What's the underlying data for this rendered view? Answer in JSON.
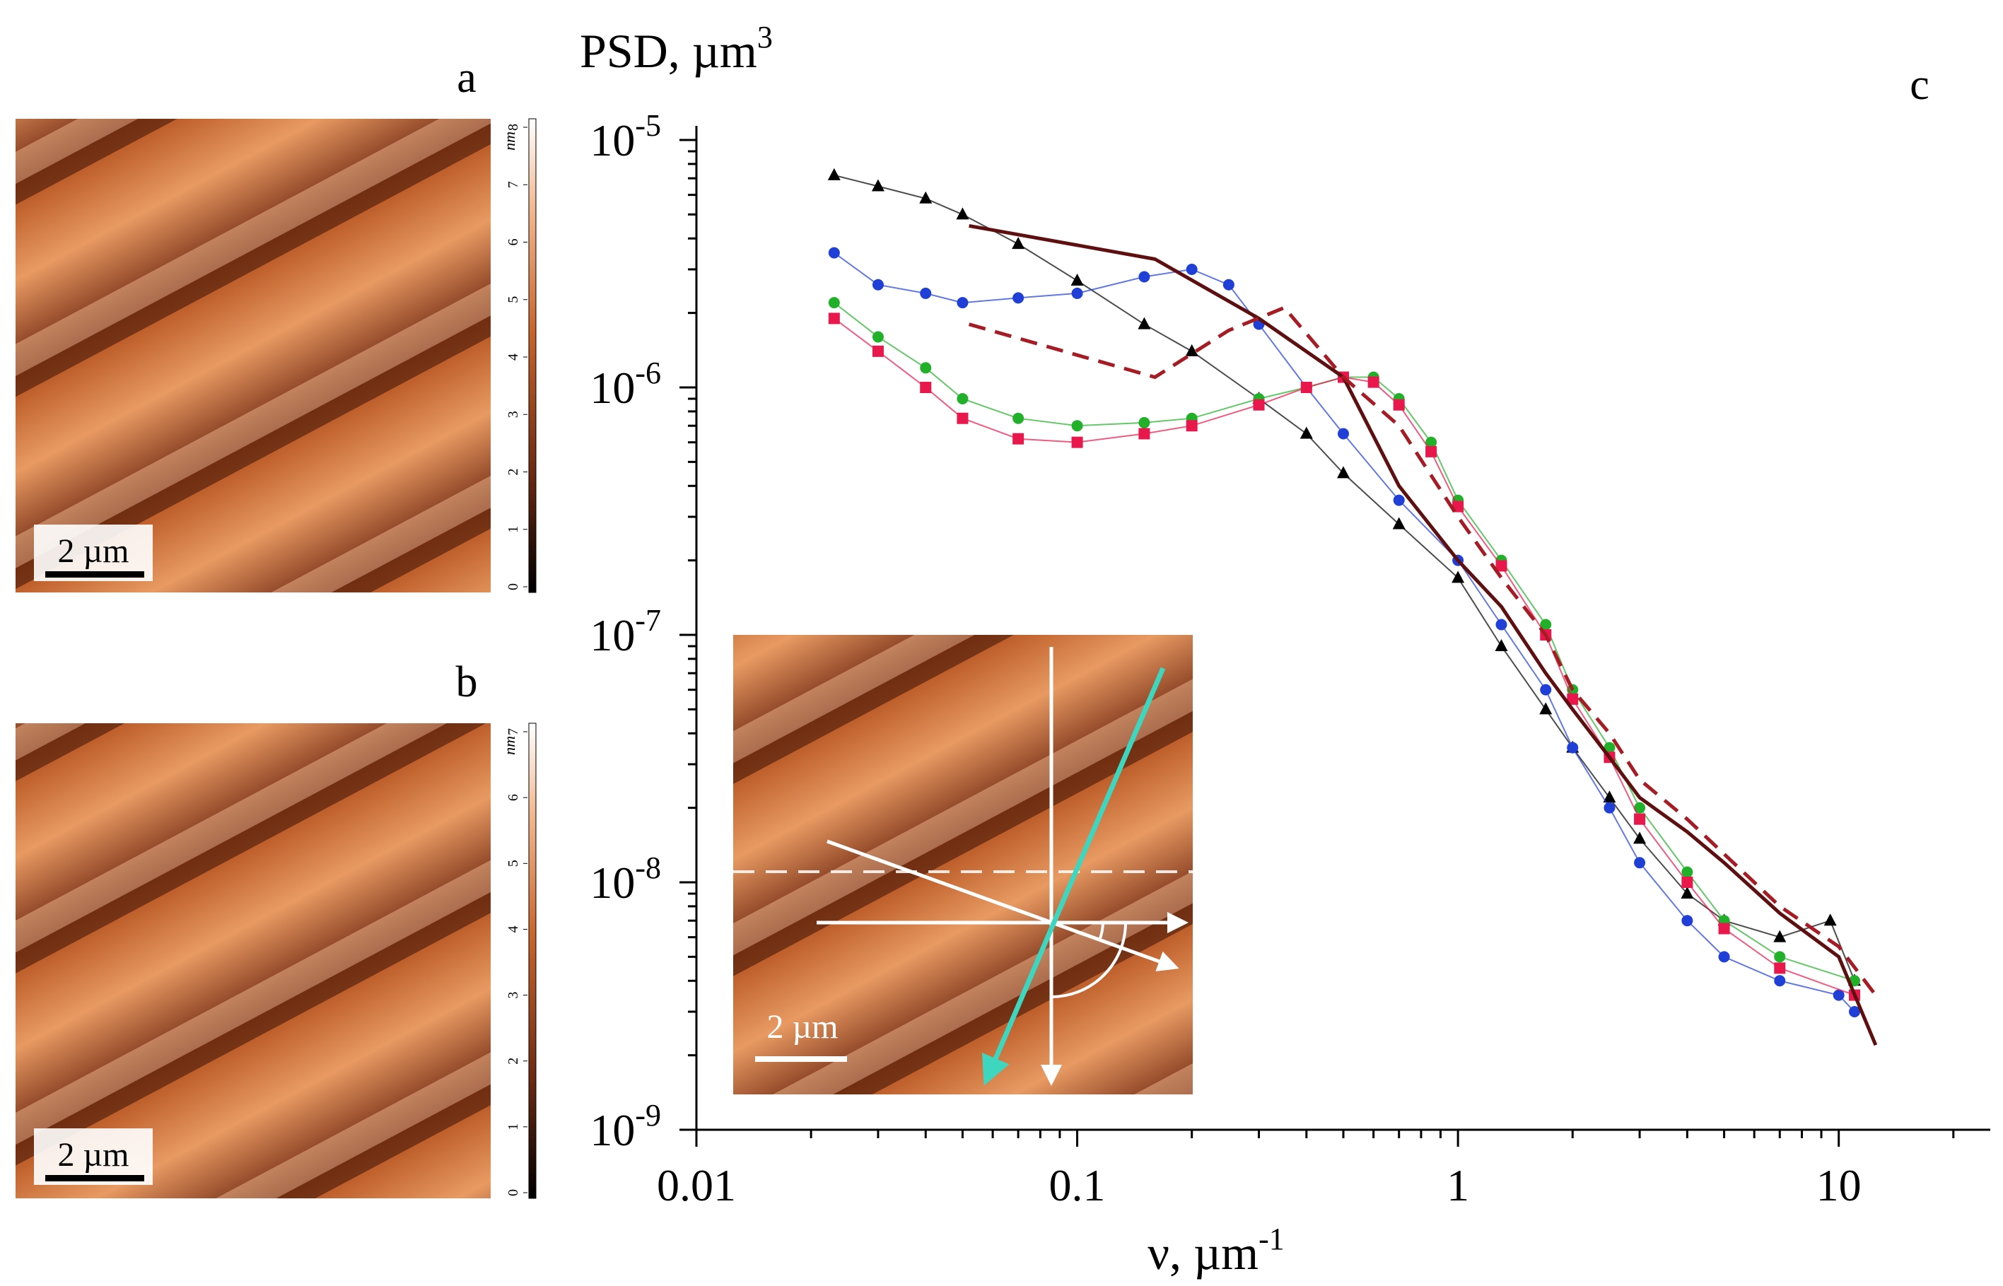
{
  "panels": {
    "a": {
      "label": "a",
      "scale_bar": "2 µm",
      "colorbar_unit": "nm",
      "colorbar_ticks": [
        "0",
        "1",
        "2",
        "3",
        "4",
        "5",
        "6",
        "7",
        "8"
      ]
    },
    "b": {
      "label": "b",
      "scale_bar": "2 µm",
      "colorbar_unit": "nm",
      "colorbar_ticks": [
        "0",
        "1",
        "2",
        "3",
        "4",
        "5",
        "6",
        "7"
      ]
    },
    "inset": {
      "scale_bar": "2 µm"
    }
  },
  "colors": {
    "black": "#000000",
    "blue": "#1f3fd6",
    "green": "#22b02a",
    "red": "#e8174c",
    "dark_red_solid": "#5e0f0f",
    "dark_red_dashed": "#a51c24",
    "cyan_arrow": "#3fd6c0"
  },
  "chart_data": {
    "type": "scatter",
    "panel_label": "c",
    "title": "",
    "ylabel_main": "PSD, µm",
    "ylabel_sup": "3",
    "xlabel_main": "ν, µm",
    "xlabel_sup": "-1",
    "x_scale": "log",
    "y_scale": "log",
    "xlim": [
      0.01,
      25
    ],
    "ylim": [
      1e-09,
      1e-05
    ],
    "x_ticks": [
      {
        "value": 0.01,
        "label": "0.01"
      },
      {
        "value": 0.1,
        "label": "0.1"
      },
      {
        "value": 1,
        "label": "1"
      },
      {
        "value": 10,
        "label": "10"
      }
    ],
    "y_ticks": [
      {
        "value": 1e-09,
        "base": "10",
        "exp": "-9"
      },
      {
        "value": 1e-08,
        "base": "10",
        "exp": "-8"
      },
      {
        "value": 1e-07,
        "base": "10",
        "exp": "-7"
      },
      {
        "value": 1e-06,
        "base": "10",
        "exp": "-6"
      },
      {
        "value": 1e-05,
        "base": "10",
        "exp": "-5"
      }
    ],
    "grid": false,
    "series": [
      {
        "name": "black-triangles",
        "marker": "triangle",
        "color": "#000000",
        "x": [
          0.023,
          0.03,
          0.04,
          0.05,
          0.07,
          0.1,
          0.15,
          0.2,
          0.3,
          0.4,
          0.5,
          0.7,
          1.0,
          1.3,
          1.7,
          2.0,
          2.5,
          3.0,
          4.0,
          5.0,
          7.0,
          9.5,
          11
        ],
        "y": [
          7.2e-06,
          6.5e-06,
          5.8e-06,
          5e-06,
          3.8e-06,
          2.7e-06,
          1.8e-06,
          1.4e-06,
          9e-07,
          6.5e-07,
          4.5e-07,
          2.8e-07,
          1.7e-07,
          9e-08,
          5e-08,
          3.5e-08,
          2.2e-08,
          1.5e-08,
          9e-09,
          7e-09,
          6e-09,
          7e-09,
          4e-09
        ]
      },
      {
        "name": "blue-circles",
        "marker": "circle",
        "color": "#1f3fd6",
        "x": [
          0.023,
          0.03,
          0.04,
          0.05,
          0.07,
          0.1,
          0.15,
          0.2,
          0.25,
          0.3,
          0.4,
          0.5,
          0.7,
          1.0,
          1.3,
          1.7,
          2.0,
          2.5,
          3.0,
          4.0,
          5.0,
          7.0,
          10,
          11
        ],
        "y": [
          3.5e-06,
          2.6e-06,
          2.4e-06,
          2.2e-06,
          2.3e-06,
          2.4e-06,
          2.8e-06,
          3e-06,
          2.6e-06,
          1.8e-06,
          1e-06,
          6.5e-07,
          3.5e-07,
          2e-07,
          1.1e-07,
          6e-08,
          3.5e-08,
          2e-08,
          1.2e-08,
          7e-09,
          5e-09,
          4e-09,
          3.5e-09,
          3e-09
        ]
      },
      {
        "name": "green-circles",
        "marker": "circle",
        "color": "#22b02a",
        "x": [
          0.023,
          0.03,
          0.04,
          0.05,
          0.07,
          0.1,
          0.15,
          0.2,
          0.3,
          0.4,
          0.5,
          0.6,
          0.7,
          0.85,
          1.0,
          1.3,
          1.7,
          2.0,
          2.5,
          3.0,
          4.0,
          5.0,
          7.0,
          11
        ],
        "y": [
          2.2e-06,
          1.6e-06,
          1.2e-06,
          9e-07,
          7.5e-07,
          7e-07,
          7.2e-07,
          7.5e-07,
          9e-07,
          1e-06,
          1.1e-06,
          1.1e-06,
          9e-07,
          6e-07,
          3.5e-07,
          2e-07,
          1.1e-07,
          6e-08,
          3.5e-08,
          2e-08,
          1.1e-08,
          7e-09,
          5e-09,
          4e-09
        ]
      },
      {
        "name": "red-squares",
        "marker": "square",
        "color": "#e8174c",
        "x": [
          0.023,
          0.03,
          0.04,
          0.05,
          0.07,
          0.1,
          0.15,
          0.2,
          0.3,
          0.4,
          0.5,
          0.6,
          0.7,
          0.85,
          1.0,
          1.3,
          1.7,
          2.0,
          2.5,
          3.0,
          4.0,
          5.0,
          7.0,
          11
        ],
        "y": [
          1.9e-06,
          1.4e-06,
          1e-06,
          7.5e-07,
          6.2e-07,
          6e-07,
          6.5e-07,
          7e-07,
          8.5e-07,
          1e-06,
          1.1e-06,
          1.05e-06,
          8.5e-07,
          5.5e-07,
          3.3e-07,
          1.9e-07,
          1e-07,
          5.5e-08,
          3.2e-08,
          1.8e-08,
          1e-08,
          6.5e-09,
          4.5e-09,
          3.5e-09
        ]
      },
      {
        "name": "dark-red-solid",
        "marker": "line",
        "style": "solid",
        "color": "#5e0f0f",
        "x": [
          0.052,
          0.16,
          0.3,
          0.5,
          0.7,
          1.0,
          1.3,
          1.7,
          2.0,
          2.5,
          3.0,
          4.0,
          5.0,
          7.0,
          10.0,
          12.5
        ],
        "y": [
          4.5e-06,
          3.3e-06,
          1.9e-06,
          1.1e-06,
          4e-07,
          2e-07,
          1.3e-07,
          7e-08,
          5e-08,
          3.2e-08,
          2.2e-08,
          1.6e-08,
          1.2e-08,
          7.5e-09,
          5e-09,
          2.2e-09
        ]
      },
      {
        "name": "dark-red-dashed",
        "marker": "line",
        "style": "dashed",
        "color": "#a51c24",
        "x": [
          0.052,
          0.16,
          0.25,
          0.35,
          0.5,
          0.7,
          1.0,
          1.3,
          1.7,
          2.0,
          2.5,
          3.0,
          4.0,
          5.0,
          7.0,
          10.0,
          12.5
        ],
        "y": [
          1.8e-06,
          1.1e-06,
          1.7e-06,
          2.1e-06,
          1.1e-06,
          7e-07,
          3e-07,
          1.7e-07,
          1e-07,
          6e-08,
          4e-08,
          2.6e-08,
          1.8e-08,
          1.3e-08,
          8e-09,
          5.5e-09,
          3.5e-09
        ]
      }
    ]
  }
}
